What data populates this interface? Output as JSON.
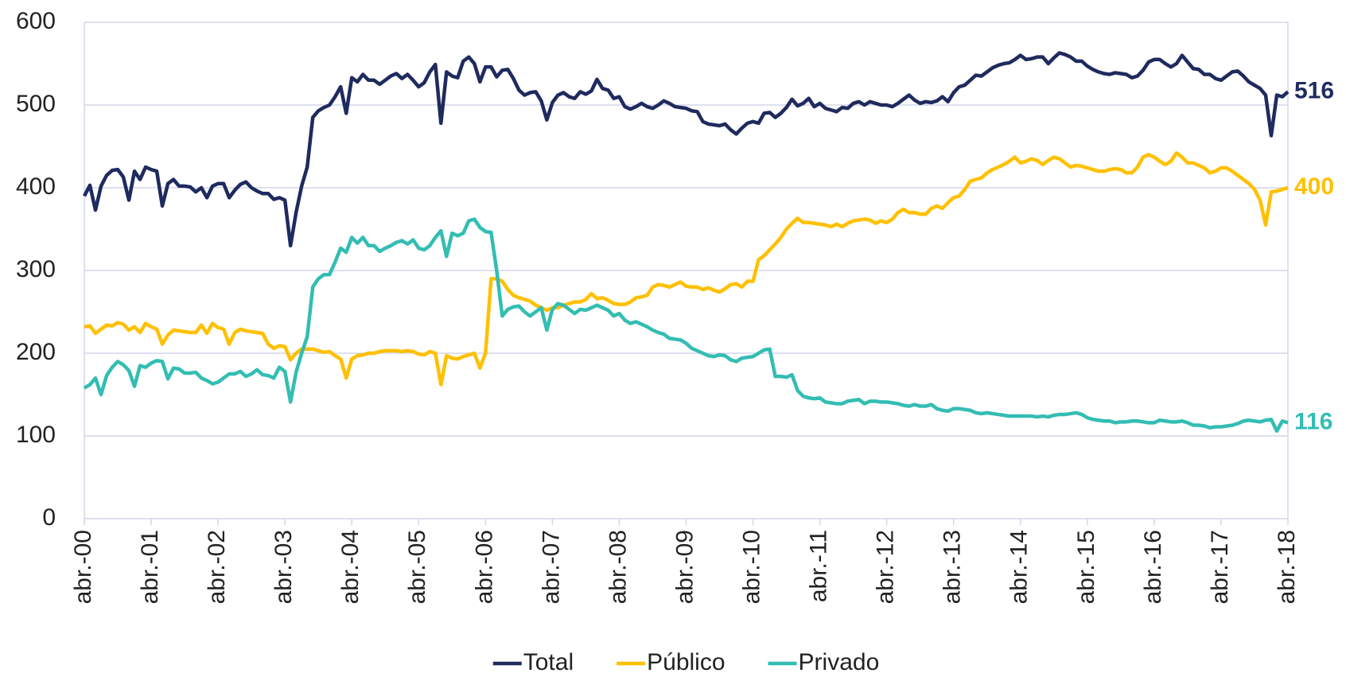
{
  "chart_data": {
    "type": "line",
    "categories": [
      "abr.-00",
      null,
      null,
      null,
      null,
      null,
      null,
      null,
      null,
      null,
      null,
      null,
      "abr.-01",
      null,
      null,
      null,
      null,
      null,
      null,
      null,
      null,
      null,
      null,
      null,
      "abr.-02",
      null,
      null,
      null,
      null,
      null,
      null,
      null,
      null,
      null,
      null,
      null,
      "abr.-03",
      null,
      null,
      null,
      null,
      null,
      null,
      null,
      null,
      null,
      null,
      null,
      "abr.-04",
      null,
      null,
      null,
      null,
      null,
      null,
      null,
      null,
      null,
      null,
      null,
      "abr.-05",
      null,
      null,
      null,
      null,
      null,
      null,
      null,
      null,
      null,
      null,
      null,
      "abr.-06",
      null,
      null,
      null,
      null,
      null,
      null,
      null,
      null,
      null,
      null,
      null,
      "abr.-07",
      null,
      null,
      null,
      null,
      null,
      null,
      null,
      null,
      null,
      null,
      null,
      "abr.-08",
      null,
      null,
      null,
      null,
      null,
      null,
      null,
      null,
      null,
      null,
      null,
      "abr.-09",
      null,
      null,
      null,
      null,
      null,
      null,
      null,
      null,
      null,
      null,
      null,
      "abr.-10",
      null,
      null,
      null,
      null,
      null,
      null,
      null,
      null,
      null,
      null,
      null,
      "abr.-11",
      null,
      null,
      null,
      null,
      null,
      null,
      null,
      null,
      null,
      null,
      null,
      "abr.-12",
      null,
      null,
      null,
      null,
      null,
      null,
      null,
      null,
      null,
      null,
      null,
      "abr.-13",
      null,
      null,
      null,
      null,
      null,
      null,
      null,
      null,
      null,
      null,
      null,
      "abr.-14",
      null,
      null,
      null,
      null,
      null,
      null,
      null,
      null,
      null,
      null,
      null,
      "abr.-15",
      null,
      null,
      null,
      null,
      null,
      null,
      null,
      null,
      null,
      null,
      null,
      "abr.-16",
      null,
      null,
      null,
      null,
      null,
      null,
      null,
      null,
      null,
      null,
      null,
      "abr.-17",
      null,
      null,
      null,
      null,
      null,
      null,
      null,
      null,
      null,
      null,
      null,
      "abr.-18"
    ],
    "series": [
      {
        "name": "Total",
        "color": "#1f2a5e",
        "values": [
          390,
          403,
          373,
          402,
          415,
          421,
          422,
          413,
          385,
          420,
          410,
          425,
          422,
          420,
          378,
          405,
          410,
          402,
          402,
          401,
          395,
          400,
          388,
          402,
          405,
          405,
          388,
          397,
          404,
          407,
          400,
          396,
          393,
          393,
          386,
          388,
          385,
          330,
          370,
          402,
          425,
          485,
          493,
          497,
          500,
          510,
          522,
          490,
          533,
          528,
          537,
          530,
          530,
          525,
          530,
          535,
          538,
          532,
          537,
          530,
          522,
          527,
          540,
          549,
          478,
          540,
          535,
          533,
          553,
          558,
          550,
          528,
          546,
          546,
          534,
          542,
          543,
          532,
          518,
          512,
          515,
          516,
          505,
          482,
          503,
          512,
          515,
          510,
          508,
          516,
          513,
          517,
          531,
          520,
          518,
          508,
          510,
          498,
          495,
          498,
          502,
          498,
          496,
          500,
          505,
          502,
          498,
          497,
          496,
          493,
          492,
          480,
          477,
          476,
          475,
          477,
          470,
          465,
          472,
          478,
          480,
          478,
          490,
          491,
          485,
          490,
          497,
          507,
          499,
          502,
          508,
          498,
          502,
          496,
          494,
          492,
          497,
          496,
          502,
          504,
          500,
          504,
          502,
          500,
          500,
          498,
          502,
          507,
          512,
          506,
          502,
          504,
          503,
          505,
          510,
          504,
          515,
          522,
          524,
          530,
          536,
          535,
          540,
          545,
          548,
          550,
          551,
          555,
          560,
          555,
          556,
          558,
          558,
          550,
          557,
          563,
          561,
          558,
          553,
          553,
          547,
          543,
          540,
          538,
          537,
          539,
          538,
          537,
          533,
          535,
          542,
          552,
          555,
          555,
          550,
          546,
          550,
          560,
          552,
          544,
          543,
          537,
          537,
          532,
          530,
          535,
          540,
          541,
          535,
          528,
          524,
          520,
          512,
          463,
          512,
          510,
          516
        ]
      },
      {
        "name": "Público",
        "color": "#ffc000",
        "values": [
          232,
          233,
          224,
          229,
          234,
          233,
          237,
          235,
          228,
          232,
          225,
          236,
          232,
          229,
          211,
          222,
          228,
          227,
          226,
          225,
          225,
          234,
          224,
          236,
          231,
          229,
          211,
          225,
          229,
          227,
          226,
          225,
          224,
          211,
          206,
          209,
          208,
          192,
          200,
          205,
          205,
          205,
          203,
          201,
          202,
          197,
          193,
          170,
          193,
          197,
          198,
          200,
          200,
          202,
          203,
          203,
          203,
          202,
          203,
          202,
          199,
          198,
          202,
          200,
          162,
          197,
          194,
          193,
          196,
          198,
          200,
          182,
          200,
          290,
          290,
          287,
          277,
          270,
          267,
          265,
          263,
          258,
          255,
          252,
          255,
          255,
          258,
          260,
          262,
          262,
          265,
          272,
          266,
          267,
          264,
          260,
          259,
          259,
          262,
          267,
          268,
          270,
          280,
          283,
          282,
          280,
          283,
          286,
          281,
          280,
          280,
          277,
          279,
          276,
          274,
          278,
          283,
          284,
          280,
          287,
          287,
          313,
          318,
          325,
          332,
          340,
          350,
          357,
          363,
          358,
          358,
          357,
          356,
          355,
          353,
          356,
          353,
          357,
          360,
          361,
          362,
          361,
          357,
          360,
          358,
          362,
          370,
          374,
          370,
          370,
          368,
          368,
          375,
          378,
          375,
          382,
          388,
          390,
          398,
          408,
          410,
          412,
          418,
          422,
          425,
          428,
          432,
          437,
          430,
          432,
          435,
          433,
          428,
          433,
          437,
          435,
          430,
          425,
          427,
          426,
          424,
          422,
          420,
          420,
          422,
          423,
          422,
          418,
          418,
          425,
          437,
          440,
          437,
          432,
          428,
          432,
          442,
          437,
          430,
          430,
          427,
          424,
          418,
          420,
          424,
          424,
          420,
          415,
          410,
          405,
          398,
          385,
          355,
          395,
          396,
          398,
          400
        ]
      },
      {
        "name": "Privado",
        "color": "#33bdb3",
        "values": [
          158,
          162,
          170,
          150,
          173,
          183,
          190,
          186,
          179,
          160,
          185,
          183,
          188,
          191,
          190,
          169,
          182,
          181,
          176,
          176,
          177,
          170,
          167,
          163,
          165,
          170,
          175,
          175,
          178,
          172,
          175,
          180,
          174,
          173,
          170,
          183,
          178,
          141,
          177,
          200,
          220,
          280,
          290,
          295,
          295,
          310,
          327,
          322,
          340,
          333,
          340,
          330,
          330,
          323,
          327,
          330,
          334,
          336,
          332,
          337,
          327,
          325,
          330,
          340,
          348,
          317,
          345,
          342,
          345,
          360,
          362,
          352,
          347,
          346,
          300,
          245,
          253,
          256,
          257,
          250,
          245,
          250,
          255,
          228,
          253,
          260,
          258,
          253,
          248,
          253,
          252,
          255,
          258,
          255,
          252,
          245,
          248,
          240,
          236,
          238,
          235,
          232,
          228,
          225,
          223,
          218,
          217,
          216,
          212,
          206,
          203,
          200,
          197,
          196,
          198,
          197,
          192,
          190,
          194,
          195,
          196,
          200,
          204,
          205,
          172,
          172,
          171,
          174,
          155,
          148,
          146,
          145,
          146,
          141,
          140,
          139,
          139,
          142,
          143,
          144,
          139,
          142,
          142,
          141,
          141,
          140,
          139,
          137,
          136,
          138,
          136,
          136,
          138,
          133,
          131,
          130,
          133,
          133,
          132,
          131,
          128,
          127,
          128,
          127,
          126,
          125,
          124,
          124,
          124,
          124,
          124,
          123,
          124,
          123,
          125,
          126,
          126,
          127,
          128,
          126,
          122,
          120,
          119,
          118,
          118,
          116,
          117,
          117,
          118,
          118,
          117,
          116,
          116,
          119,
          118,
          117,
          117,
          118,
          116,
          113,
          113,
          112,
          110,
          111,
          111,
          112,
          113,
          115,
          118,
          119,
          118,
          117,
          119,
          120,
          106,
          118,
          116
        ]
      }
    ],
    "ylim": [
      0,
      600
    ],
    "yticks": [
      0,
      100,
      200,
      300,
      400,
      500,
      600
    ],
    "grid": true,
    "legend": "bottom"
  }
}
